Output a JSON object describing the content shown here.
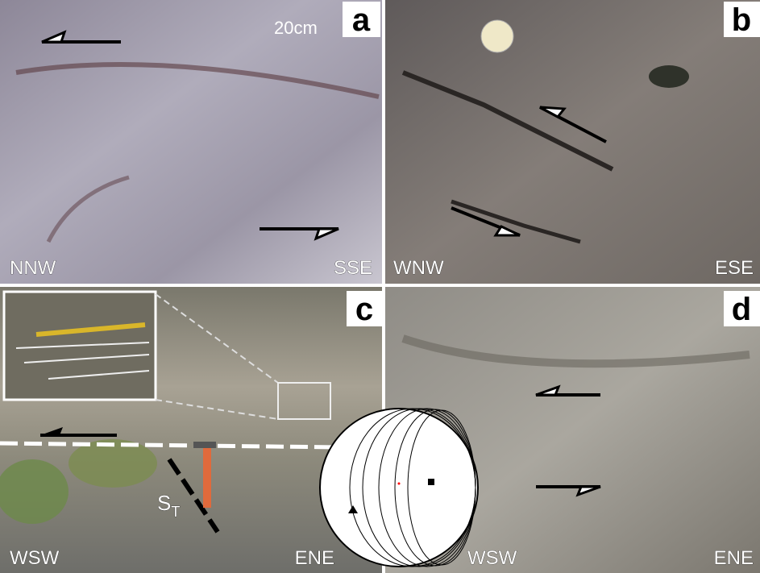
{
  "panels": [
    {
      "label": "a",
      "scale": "20cm",
      "left": "NNW",
      "right": "SSE"
    },
    {
      "label": "b",
      "left": "WNW",
      "right": "ESE"
    },
    {
      "label": "c",
      "left": "WSW",
      "right": "ENE",
      "annotation": {
        "text": "S",
        "subscript": "T"
      }
    },
    {
      "label": "d",
      "left": "WSW",
      "right": "ENE"
    }
  ]
}
